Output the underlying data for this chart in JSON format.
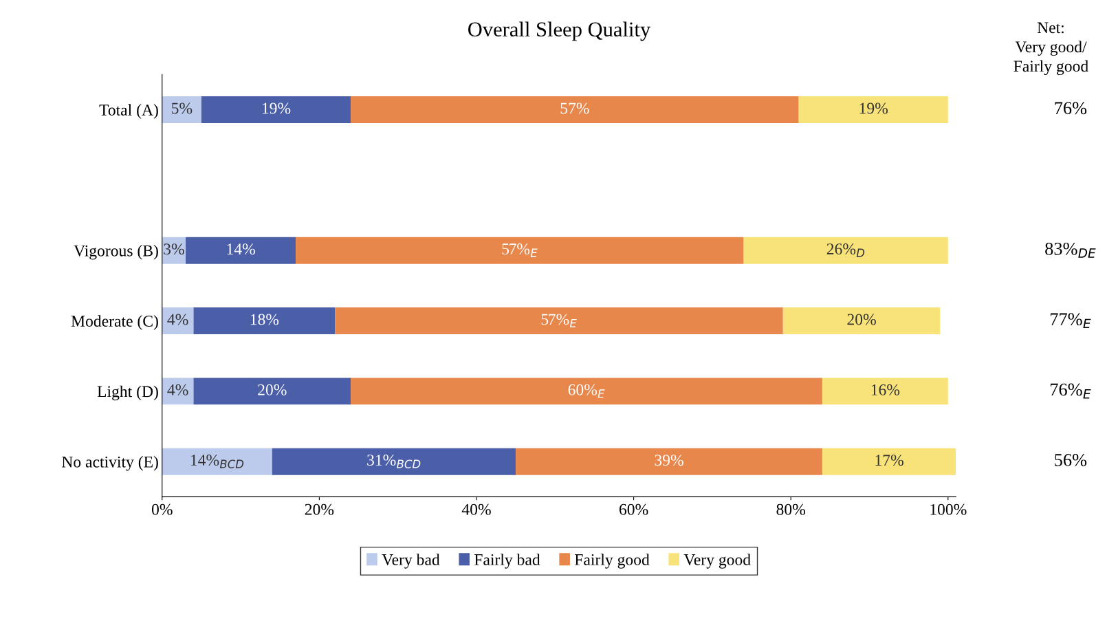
{
  "chart_data": {
    "type": "bar",
    "orientation": "horizontal",
    "stacked": true,
    "title": "Overall Sleep Quality",
    "categories": [
      "Total (A)",
      null,
      "Vigorous (B)",
      "Moderate (C)",
      "Light (D)",
      "No activity (E)"
    ],
    "series": [
      {
        "name": "Very bad",
        "color": "#bccbec",
        "values": [
          5,
          null,
          3,
          4,
          4,
          14
        ],
        "value_labels": [
          "5%",
          null,
          "3%",
          "4%",
          "4%",
          "14%$_{BCD}$"
        ]
      },
      {
        "name": "Fairly bad",
        "color": "#4b5ea8",
        "values": [
          19,
          null,
          14,
          18,
          20,
          31
        ],
        "value_labels": [
          "19%",
          null,
          "14%",
          "18%",
          "20%",
          "31%$_{BCD}$"
        ]
      },
      {
        "name": "Fairly good",
        "color": "#e8874c",
        "values": [
          57,
          null,
          57,
          57,
          60,
          39
        ],
        "value_labels": [
          "57%",
          null,
          "57%$_{E}$",
          "57%$_{E}$",
          "60%$_{E}$",
          "39%"
        ]
      },
      {
        "name": "Very good",
        "color": "#f8e27a",
        "values": [
          19,
          null,
          26,
          20,
          16,
          17
        ],
        "value_labels": [
          "19%",
          null,
          "26%$_{D}$",
          "20%",
          "16%",
          "17%"
        ]
      }
    ],
    "xlim": [
      0,
      101
    ],
    "xticks": [
      {
        "value": 0,
        "label": "0%"
      },
      {
        "value": 20,
        "label": "20%"
      },
      {
        "value": 40,
        "label": "40%"
      },
      {
        "value": 60,
        "label": "60%"
      },
      {
        "value": 80,
        "label": "80%"
      },
      {
        "value": 100,
        "label": "100%"
      }
    ],
    "annotations": [
      "Net:\nVery good/\nFairly good",
      "76%",
      "83%$_{DE}$",
      "77%$_{E}$",
      "76%$_{E}$",
      "56%"
    ],
    "legend": "bottom",
    "grid": false
  }
}
